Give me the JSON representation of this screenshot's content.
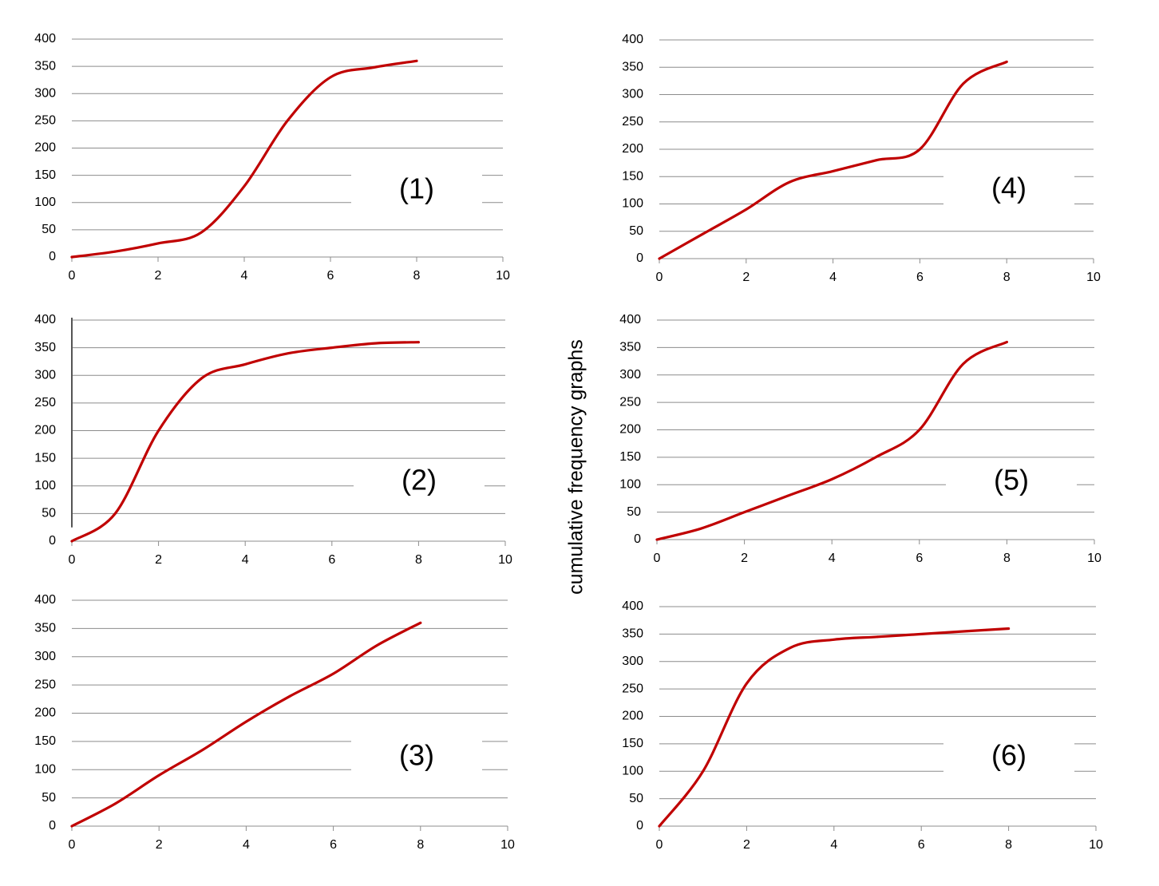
{
  "side_title": "cumulative frequency graphs",
  "colors": {
    "curve": "#c00000",
    "grid": "#8c8c8c",
    "axis": "#8c8c8c",
    "background": "#ffffff"
  },
  "chart_data": [
    {
      "type": "line",
      "panel_label": "(1)",
      "xlim": [
        0,
        10
      ],
      "ylim": [
        0,
        400
      ],
      "xticks": [
        0,
        2,
        4,
        6,
        8,
        10
      ],
      "yticks": [
        0,
        50,
        100,
        150,
        200,
        250,
        300,
        350,
        400
      ],
      "grid": "horizontal",
      "series": [
        {
          "x": [
            0,
            1,
            2,
            3,
            4,
            5,
            6,
            7,
            8
          ],
          "values": [
            0,
            10,
            25,
            45,
            130,
            250,
            330,
            348,
            360
          ]
        }
      ]
    },
    {
      "type": "line",
      "panel_label": "(2)",
      "xlim": [
        0,
        10
      ],
      "ylim": [
        0,
        400
      ],
      "xticks": [
        0,
        2,
        4,
        6,
        8,
        10
      ],
      "yticks": [
        0,
        50,
        100,
        150,
        200,
        250,
        300,
        350,
        400
      ],
      "grid": "horizontal",
      "series": [
        {
          "x": [
            0,
            1,
            2,
            3,
            4,
            5,
            6,
            7,
            8
          ],
          "values": [
            0,
            50,
            200,
            295,
            320,
            340,
            350,
            358,
            360
          ]
        }
      ]
    },
    {
      "type": "line",
      "panel_label": "(3)",
      "xlim": [
        0,
        10
      ],
      "ylim": [
        0,
        400
      ],
      "xticks": [
        0,
        2,
        4,
        6,
        8,
        10
      ],
      "yticks": [
        0,
        50,
        100,
        150,
        200,
        250,
        300,
        350,
        400
      ],
      "grid": "horizontal",
      "series": [
        {
          "x": [
            0,
            1,
            2,
            3,
            4,
            5,
            6,
            7,
            8
          ],
          "values": [
            0,
            40,
            90,
            135,
            185,
            230,
            270,
            320,
            360
          ]
        }
      ]
    },
    {
      "type": "line",
      "panel_label": "(4)",
      "xlim": [
        0,
        10
      ],
      "ylim": [
        0,
        400
      ],
      "xticks": [
        0,
        2,
        4,
        6,
        8,
        10
      ],
      "yticks": [
        0,
        50,
        100,
        150,
        200,
        250,
        300,
        350,
        400
      ],
      "grid": "horizontal",
      "series": [
        {
          "x": [
            0,
            1,
            2,
            3,
            4,
            5,
            6,
            7,
            8
          ],
          "values": [
            0,
            45,
            90,
            140,
            160,
            180,
            200,
            320,
            360
          ]
        }
      ]
    },
    {
      "type": "line",
      "panel_label": "(5)",
      "xlim": [
        0,
        10
      ],
      "ylim": [
        0,
        400
      ],
      "xticks": [
        0,
        2,
        4,
        6,
        8,
        10
      ],
      "yticks": [
        0,
        50,
        100,
        150,
        200,
        250,
        300,
        350,
        400
      ],
      "grid": "horizontal",
      "series": [
        {
          "x": [
            0,
            1,
            2,
            3,
            4,
            5,
            6,
            7,
            8
          ],
          "values": [
            0,
            20,
            50,
            80,
            110,
            150,
            200,
            320,
            360
          ]
        }
      ]
    },
    {
      "type": "line",
      "panel_label": "(6)",
      "xlim": [
        0,
        10
      ],
      "ylim": [
        0,
        400
      ],
      "xticks": [
        0,
        2,
        4,
        6,
        8,
        10
      ],
      "yticks": [
        0,
        50,
        100,
        150,
        200,
        250,
        300,
        350,
        400
      ],
      "grid": "horizontal",
      "series": [
        {
          "x": [
            0,
            1,
            2,
            3,
            4,
            5,
            6,
            7,
            8
          ],
          "values": [
            0,
            100,
            260,
            325,
            340,
            345,
            350,
            355,
            360
          ]
        }
      ]
    }
  ]
}
